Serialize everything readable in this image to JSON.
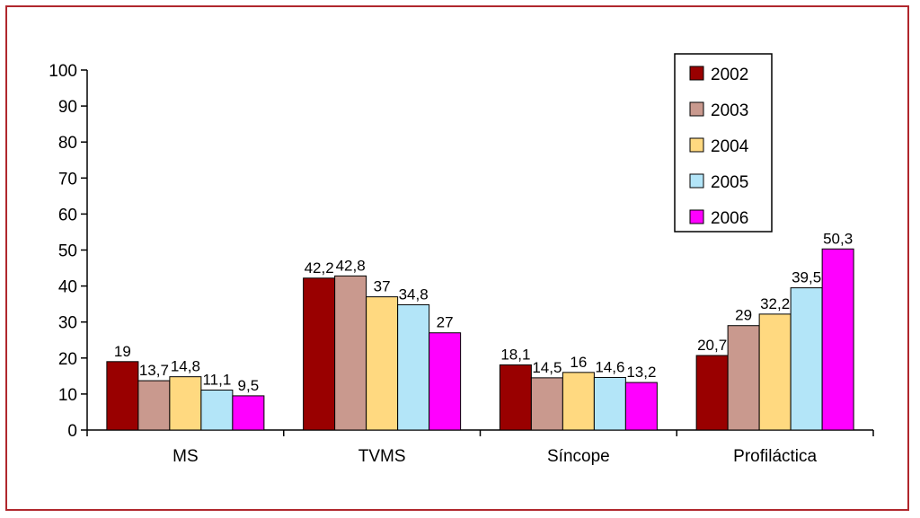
{
  "chart_data": {
    "type": "bar",
    "categories": [
      "MS",
      "TVMS",
      "Síncope",
      "Profiláctica"
    ],
    "series": [
      {
        "name": "2002",
        "color": "#990000",
        "values": [
          19,
          42.2,
          18.1,
          20.7
        ],
        "labels": [
          "19",
          "42,2",
          "18,1",
          "20,7"
        ]
      },
      {
        "name": "2003",
        "color": "#c9998e",
        "values": [
          13.7,
          42.8,
          14.5,
          29
        ],
        "labels": [
          "13,7",
          "42,8",
          "14,5",
          "29"
        ]
      },
      {
        "name": "2004",
        "color": "#ffd980",
        "values": [
          14.8,
          37,
          16,
          32.2
        ],
        "labels": [
          "14,8",
          "37",
          "16",
          "32,2"
        ]
      },
      {
        "name": "2005",
        "color": "#b3e5f8",
        "values": [
          11.1,
          34.8,
          14.6,
          39.5
        ],
        "labels": [
          "11,1",
          "34,8",
          "14,6",
          "39,5"
        ]
      },
      {
        "name": "2006",
        "color": "#ff00ff",
        "values": [
          9.5,
          27,
          13.2,
          50.3
        ],
        "labels": [
          "9,5",
          "27",
          "13,2",
          "50,3"
        ]
      }
    ],
    "yticks": [
      "0",
      "10",
      "20",
      "30",
      "40",
      "50",
      "60",
      "70",
      "80",
      "90",
      "100"
    ],
    "ylim": [
      0,
      100
    ],
    "title": "",
    "xlabel": "",
    "ylabel": "",
    "legend_position": "top-right",
    "grid": false
  }
}
